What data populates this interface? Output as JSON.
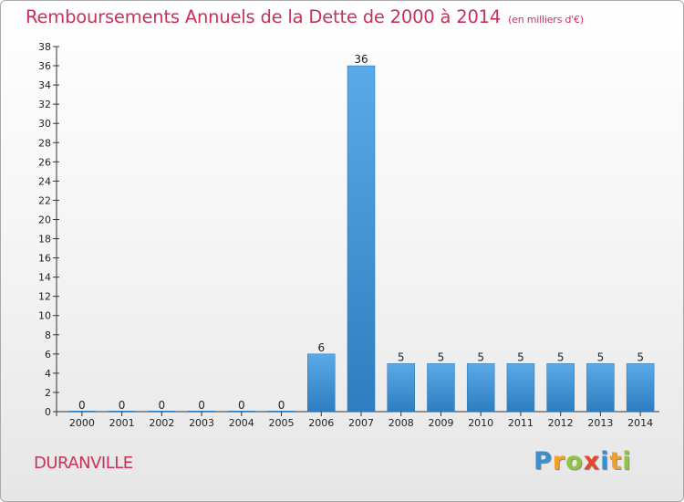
{
  "header": {
    "title": "Remboursements Annuels de la Dette de 2000 à 2014",
    "subtitle": "(en milliers d'€)"
  },
  "footer": {
    "commune": "DURANVILLE",
    "logo_letters": [
      "P",
      "r",
      "o",
      "x",
      "i",
      "t",
      "i"
    ]
  },
  "colors": {
    "title": "#c8325a",
    "bar_top": "#5aaae8",
    "bar_bottom": "#2d7ec0"
  },
  "chart_data": {
    "type": "bar",
    "title": "Remboursements Annuels de la Dette de 2000 à 2014",
    "subtitle": "(en milliers d'€)",
    "categories": [
      "2000",
      "2001",
      "2002",
      "2003",
      "2004",
      "2005",
      "2006",
      "2007",
      "2008",
      "2009",
      "2010",
      "2011",
      "2012",
      "2013",
      "2014"
    ],
    "values": [
      0,
      0,
      0,
      0,
      0,
      0,
      6,
      36,
      5,
      5,
      5,
      5,
      5,
      5,
      5
    ],
    "data_labels": [
      "0",
      "0",
      "0",
      "0",
      "0",
      "0",
      "6",
      "36",
      "5",
      "5",
      "5",
      "5",
      "5",
      "5",
      "5"
    ],
    "ylim": [
      0,
      38
    ],
    "yticks": [
      0,
      2,
      4,
      6,
      8,
      10,
      12,
      14,
      16,
      18,
      20,
      22,
      24,
      26,
      28,
      30,
      32,
      34,
      36,
      38
    ],
    "grid": false,
    "legend": "none"
  }
}
